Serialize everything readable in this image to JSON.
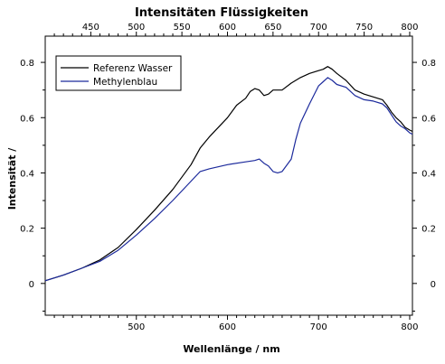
{
  "chart_data": {
    "type": "line",
    "title": "Intensitäten Flüssigkeiten",
    "xlabel": "Wellenlänge / nm",
    "ylabel": "Intensität /",
    "xlim": [
      400,
      803
    ],
    "ylim": [
      -0.115,
      0.895
    ],
    "x_ticks_bottom": [
      500,
      600,
      700,
      800
    ],
    "x_ticks_top": [
      450,
      500,
      550,
      600,
      650,
      700,
      750,
      800
    ],
    "y_ticks": [
      0,
      0.2,
      0.4,
      0.6,
      0.8
    ],
    "y_tick_labels": [
      "0",
      "0.2",
      "0.4",
      "0.6",
      "0.8"
    ],
    "grid": false,
    "legend_position": "top-left",
    "series": [
      {
        "name": "Referenz Wasser",
        "color": "#000000",
        "x": [
          400,
          420,
          440,
          460,
          480,
          500,
          520,
          540,
          560,
          570,
          580,
          600,
          610,
          620,
          625,
          630,
          635,
          640,
          645,
          650,
          660,
          670,
          680,
          690,
          700,
          705,
          710,
          715,
          720,
          730,
          740,
          750,
          760,
          770,
          775,
          780,
          785,
          790,
          795,
          800,
          803
        ],
        "y": [
          0.01,
          0.03,
          0.055,
          0.085,
          0.13,
          0.195,
          0.265,
          0.34,
          0.43,
          0.49,
          0.53,
          0.6,
          0.645,
          0.67,
          0.695,
          0.705,
          0.7,
          0.68,
          0.685,
          0.7,
          0.7,
          0.725,
          0.745,
          0.76,
          0.77,
          0.775,
          0.785,
          0.775,
          0.76,
          0.735,
          0.7,
          0.685,
          0.675,
          0.665,
          0.645,
          0.62,
          0.6,
          0.585,
          0.565,
          0.555,
          0.55
        ]
      },
      {
        "name": "Methylenblau",
        "color": "#1c2a9c",
        "x": [
          400,
          420,
          440,
          460,
          480,
          500,
          520,
          540,
          560,
          570,
          580,
          600,
          620,
          630,
          635,
          640,
          645,
          650,
          655,
          660,
          670,
          675,
          680,
          690,
          700,
          705,
          710,
          715,
          720,
          730,
          740,
          750,
          760,
          770,
          775,
          780,
          785,
          790,
          795,
          800,
          803
        ],
        "y": [
          0.01,
          0.03,
          0.055,
          0.08,
          0.12,
          0.175,
          0.235,
          0.3,
          0.37,
          0.405,
          0.415,
          0.43,
          0.44,
          0.445,
          0.45,
          0.435,
          0.425,
          0.405,
          0.4,
          0.405,
          0.45,
          0.52,
          0.58,
          0.65,
          0.715,
          0.73,
          0.745,
          0.735,
          0.72,
          0.71,
          0.68,
          0.665,
          0.66,
          0.65,
          0.635,
          0.61,
          0.585,
          0.57,
          0.56,
          0.545,
          0.54
        ]
      }
    ]
  }
}
